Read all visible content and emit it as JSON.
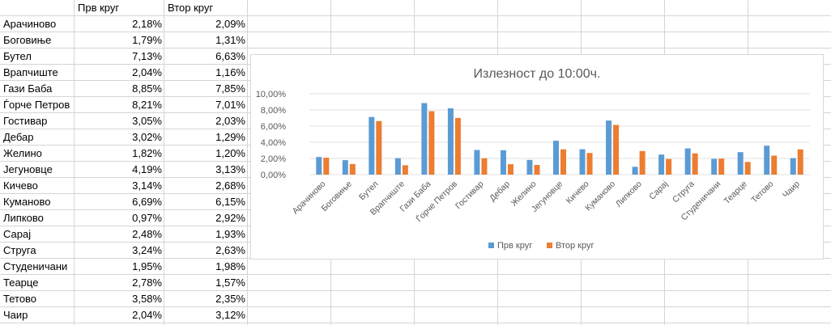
{
  "sheet": {
    "headers": [
      "",
      "Прв круг",
      "Втор круг"
    ],
    "rows": [
      {
        "name": "Арачиново",
        "first": "2,18%",
        "second": "2,09%"
      },
      {
        "name": "Боговиње",
        "first": "1,79%",
        "second": "1,31%"
      },
      {
        "name": "Бутел",
        "first": "7,13%",
        "second": "6,63%"
      },
      {
        "name": "Врапчиште",
        "first": "2,04%",
        "second": "1,16%"
      },
      {
        "name": "Гази Баба",
        "first": "8,85%",
        "second": "7,85%"
      },
      {
        "name": "Ѓорче Петров",
        "first": "8,21%",
        "second": "7,01%"
      },
      {
        "name": "Гостивар",
        "first": "3,05%",
        "second": "2,03%"
      },
      {
        "name": "Дебар",
        "first": "3,02%",
        "second": "1,29%"
      },
      {
        "name": "Желино",
        "first": "1,82%",
        "second": "1,20%"
      },
      {
        "name": "Јегуновце",
        "first": "4,19%",
        "second": "3,13%"
      },
      {
        "name": "Кичево",
        "first": "3,14%",
        "second": "2,68%"
      },
      {
        "name": "Куманово",
        "first": "6,69%",
        "second": "6,15%"
      },
      {
        "name": "Липково",
        "first": "0,97%",
        "second": "2,92%"
      },
      {
        "name": "Сарај",
        "first": "2,48%",
        "second": "1,93%"
      },
      {
        "name": "Струга",
        "first": "3,24%",
        "second": "2,63%"
      },
      {
        "name": "Студеничани",
        "first": "1,95%",
        "second": "1,98%"
      },
      {
        "name": "Теарце",
        "first": "2,78%",
        "second": "1,57%"
      },
      {
        "name": "Тетово",
        "first": "3,58%",
        "second": "2,35%"
      },
      {
        "name": "Чаир",
        "first": "2,04%",
        "second": "3,12%"
      }
    ]
  },
  "chart_data": {
    "type": "bar",
    "title": "Излезност до 10:00ч.",
    "categories": [
      "Арачиново",
      "Боговиње",
      "Бутел",
      "Врапчиште",
      "Гази Баба",
      "Ѓорче Петров",
      "Гостивар",
      "Дебар",
      "Желино",
      "Јегуновце",
      "Кичево",
      "Куманово",
      "Липково",
      "Сарај",
      "Струга",
      "Студеничани",
      "Теарце",
      "Тетово",
      "Чаир"
    ],
    "series": [
      {
        "name": "Прв круг",
        "color": "#5b9bd5",
        "values": [
          2.18,
          1.79,
          7.13,
          2.04,
          8.85,
          8.21,
          3.05,
          3.02,
          1.82,
          4.19,
          3.14,
          6.69,
          0.97,
          2.48,
          3.24,
          1.95,
          2.78,
          3.58,
          2.04
        ]
      },
      {
        "name": "Втор круг",
        "color": "#ed7d31",
        "values": [
          2.09,
          1.31,
          6.63,
          1.16,
          7.85,
          7.01,
          2.03,
          1.29,
          1.2,
          3.13,
          2.68,
          6.15,
          2.92,
          1.93,
          2.63,
          1.98,
          1.57,
          2.35,
          3.12
        ]
      }
    ],
    "yticks": [
      "0,00%",
      "2,00%",
      "4,00%",
      "6,00%",
      "8,00%",
      "10,00%"
    ],
    "ylim": [
      0,
      10
    ],
    "grid": true,
    "legend": "bottom",
    "xlabel": "",
    "ylabel": ""
  },
  "colors": {
    "gridline": "#e0e0e0",
    "cell_border": "#d4d4d4",
    "chart_border": "#d9d9d9",
    "title_text": "#595959",
    "axis_text": "#595959"
  }
}
